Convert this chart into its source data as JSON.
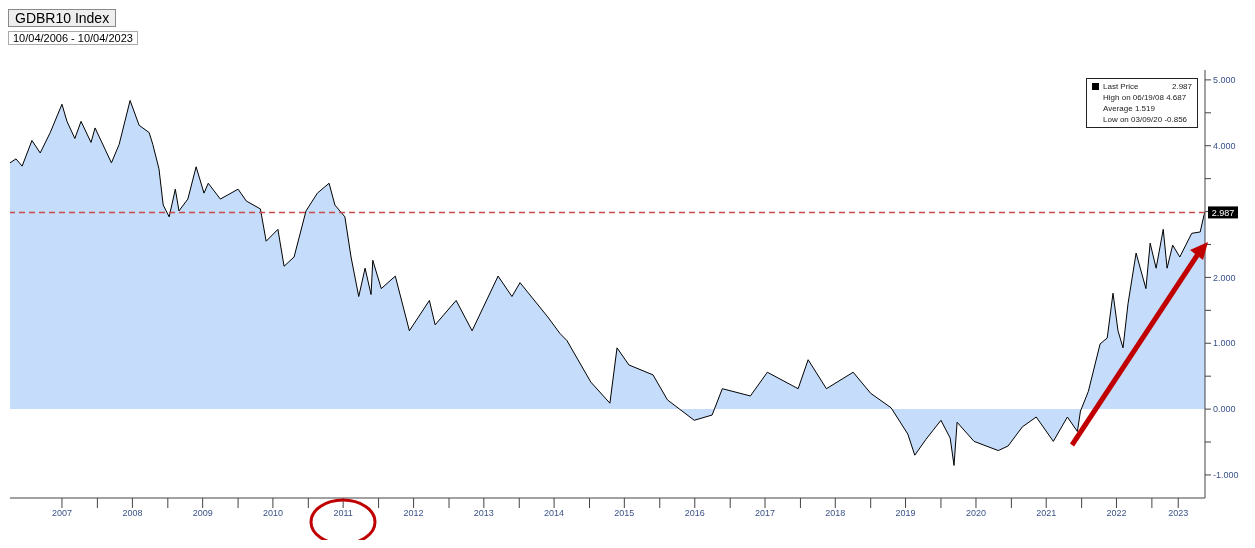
{
  "chart_data": {
    "type": "area",
    "title": "GDBR10 Index",
    "subtitle": "10/04/2006 - 10/04/2023",
    "x": [
      "2006-10-04",
      "2006-11-04",
      "2006-12-06",
      "2007-01-26",
      "2007-03-10",
      "2007-05-01",
      "2007-07-01",
      "2007-07-27",
      "2007-09-06",
      "2007-10-08",
      "2007-11-29",
      "2007-12-20",
      "2008-03-14",
      "2008-04-23",
      "2008-06-19",
      "2008-08-05",
      "2008-09-26",
      "2008-10-15",
      "2008-11-16",
      "2008-12-08",
      "2009-01-08",
      "2009-02-09",
      "2009-02-28",
      "2009-04-15",
      "2009-05-28",
      "2009-07-08",
      "2009-07-30",
      "2009-10-01",
      "2010-01-01",
      "2010-02-13",
      "2010-04-27",
      "2010-05-27",
      "2010-07-27",
      "2010-08-28",
      "2010-10-19",
      "2010-12-20",
      "2011-02-17",
      "2011-04-19",
      "2011-05-19",
      "2011-07-10",
      "2011-08-11",
      "2011-09-20",
      "2011-10-23",
      "2011-11-23",
      "2011-12-02",
      "2012-01-15",
      "2012-03-28",
      "2012-06-09",
      "2012-09-21",
      "2012-10-21",
      "2013-02-07",
      "2013-05-01",
      "2013-09-13",
      "2013-11-24",
      "2014-01-05",
      "2014-05-29",
      "2014-07-31",
      "2014-09-06",
      "2015-01-08",
      "2015-04-17",
      "2015-05-24",
      "2015-07-25",
      "2015-11-27",
      "2016-02-10",
      "2016-06-28",
      "2016-09-29",
      "2016-11-21",
      "2017-04-16",
      "2017-07-13",
      "2017-12-20",
      "2018-02-10",
      "2018-05-16",
      "2018-10-02",
      "2019-01-01",
      "2019-04-17",
      "2019-07-13",
      "2019-08-18",
      "2019-10-15",
      "2020-01-01",
      "2020-02-18",
      "2020-03-09",
      "2020-03-25",
      "2020-06-21",
      "2020-10-25",
      "2020-12-15",
      "2021-02-27",
      "2021-05-10",
      "2021-08-07",
      "2021-10-19",
      "2021-12-10",
      "2021-12-26",
      "2022-02-05",
      "2022-04-07",
      "2022-05-14",
      "2022-06-13",
      "2022-07-09",
      "2022-08-04",
      "2022-08-30",
      "2022-10-11",
      "2022-12-01",
      "2022-12-23",
      "2023-01-23",
      "2023-03-01",
      "2023-03-21",
      "2023-04-19",
      "2023-05-26",
      "2023-07-27",
      "2023-09-09",
      "2023-09-29",
      "2023-10-04"
    ],
    "series": [
      {
        "name": "Last Price",
        "color": "#c5dcfa",
        "values": [
          3.74,
          3.8,
          3.69,
          4.08,
          3.89,
          4.2,
          4.63,
          4.37,
          4.11,
          4.37,
          4.05,
          4.27,
          3.74,
          4.02,
          4.687,
          4.31,
          4.2,
          4.02,
          3.65,
          3.1,
          2.92,
          3.34,
          3.01,
          3.19,
          3.68,
          3.28,
          3.43,
          3.19,
          3.34,
          3.16,
          3.04,
          2.55,
          2.73,
          2.17,
          2.31,
          3.01,
          3.28,
          3.43,
          3.1,
          2.92,
          2.31,
          1.71,
          2.14,
          1.74,
          2.26,
          1.83,
          2.02,
          1.19,
          1.65,
          1.28,
          1.65,
          1.19,
          2.02,
          1.71,
          1.92,
          1.4,
          1.15,
          1.04,
          0.41,
          0.09,
          0.93,
          0.67,
          0.52,
          0.14,
          -0.17,
          -0.09,
          0.31,
          0.2,
          0.56,
          0.31,
          0.75,
          0.31,
          0.56,
          0.24,
          0.02,
          -0.38,
          -0.7,
          -0.46,
          -0.17,
          -0.44,
          -0.856,
          -0.2,
          -0.49,
          -0.63,
          -0.56,
          -0.27,
          -0.12,
          -0.49,
          -0.12,
          -0.34,
          -0.03,
          0.27,
          0.99,
          1.08,
          1.76,
          1.19,
          0.93,
          1.6,
          2.37,
          1.83,
          2.52,
          2.14,
          2.73,
          2.14,
          2.49,
          2.31,
          2.67,
          2.69,
          2.95,
          2.987
        ]
      }
    ],
    "xlim": [
      "2006-10-04",
      "2023-10-04"
    ],
    "xticks": [
      {
        "value": "2007-07-01",
        "label": "2007"
      },
      {
        "value": "2008-01-01",
        "label": null
      },
      {
        "value": "2008-07-01",
        "label": "2008"
      },
      {
        "value": "2009-01-01",
        "label": null
      },
      {
        "value": "2009-07-01",
        "label": "2009"
      },
      {
        "value": "2010-01-01",
        "label": null
      },
      {
        "value": "2010-07-01",
        "label": "2010"
      },
      {
        "value": "2011-01-01",
        "label": null
      },
      {
        "value": "2011-07-01",
        "label": "2011"
      },
      {
        "value": "2012-01-01",
        "label": null
      },
      {
        "value": "2012-07-01",
        "label": "2012"
      },
      {
        "value": "2013-01-01",
        "label": null
      },
      {
        "value": "2013-07-01",
        "label": "2013"
      },
      {
        "value": "2014-01-01",
        "label": null
      },
      {
        "value": "2014-07-01",
        "label": "2014"
      },
      {
        "value": "2015-01-01",
        "label": null
      },
      {
        "value": "2015-07-01",
        "label": "2015"
      },
      {
        "value": "2016-01-01",
        "label": null
      },
      {
        "value": "2016-07-01",
        "label": "2016"
      },
      {
        "value": "2017-01-01",
        "label": null
      },
      {
        "value": "2017-07-01",
        "label": "2017"
      },
      {
        "value": "2018-01-01",
        "label": null
      },
      {
        "value": "2018-07-01",
        "label": "2018"
      },
      {
        "value": "2019-01-01",
        "label": null
      },
      {
        "value": "2019-07-01",
        "label": "2019"
      },
      {
        "value": "2020-01-01",
        "label": null
      },
      {
        "value": "2020-07-01",
        "label": "2020"
      },
      {
        "value": "2021-01-01",
        "label": null
      },
      {
        "value": "2021-07-01",
        "label": "2021"
      },
      {
        "value": "2022-01-01",
        "label": null
      },
      {
        "value": "2022-07-01",
        "label": "2022"
      },
      {
        "value": "2023-01-01",
        "label": null
      },
      {
        "value": "2023-05-18",
        "label": "2023"
      }
    ],
    "ylim": [
      -1.35,
      5.15
    ],
    "yticks": [
      {
        "value": -1,
        "label": "-1.000"
      },
      {
        "value": -0.5,
        "label": null
      },
      {
        "value": 0,
        "label": "0.000"
      },
      {
        "value": 0.5,
        "label": null
      },
      {
        "value": 1,
        "label": "1.000"
      },
      {
        "value": 1.5,
        "label": null
      },
      {
        "value": 2,
        "label": "2.000"
      },
      {
        "value": 2.5,
        "label": null
      },
      {
        "value": 3,
        "label": null
      },
      {
        "value": 3.5,
        "label": null
      },
      {
        "value": 4,
        "label": "4.000"
      },
      {
        "value": 4.5,
        "label": null
      },
      {
        "value": 5,
        "label": "5.000"
      }
    ],
    "ref_lines": [
      {
        "axis": "y",
        "value": 2.987,
        "color": "#c84b4b",
        "line_style": "dashed"
      }
    ],
    "legend": "top right",
    "annotations": [
      {
        "text": "2.987",
        "x": "2023-10-04",
        "y": 2.987
      },
      "High on 06/19/08  4.687",
      "Average  1.519",
      "Low on 03/09/20  -0.856"
    ]
  }
}
